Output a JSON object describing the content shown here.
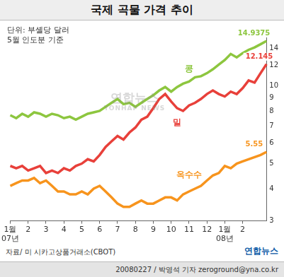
{
  "chart_data": {
    "type": "line",
    "title": "국제 곡물 가격 추이",
    "subtitle": [
      "단위: 부셸당 달러",
      "5월 인도분 기준"
    ],
    "source": "자료/ 미 시카고상품거래소(CBOT)",
    "credit": "20080227 / 박영석 기자 zeroground@yna.co.kr",
    "logo": "연합뉴스",
    "watermark": [
      "연합뉴스",
      "YONHAP NEWS"
    ],
    "log": "y",
    "grid": false,
    "categories": [
      "1월 07년",
      null,
      null,
      "2",
      null,
      null,
      "3",
      null,
      null,
      "4",
      null,
      null,
      "5",
      null,
      null,
      "6",
      null,
      null,
      "7",
      null,
      null,
      "8",
      null,
      null,
      "9",
      null,
      null,
      "10",
      null,
      null,
      "11",
      null,
      null,
      "12",
      null,
      null,
      "1월 08년",
      null,
      null,
      "2",
      null,
      null,
      null,
      null
    ],
    "ylim": [
      3,
      16
    ],
    "yticks": [
      3,
      4,
      5,
      6,
      7,
      8,
      9,
      10,
      12,
      14
    ],
    "series": [
      {
        "name": "콩",
        "color": "#8dc63f",
        "values": [
          7.7,
          7.5,
          7.8,
          7.6,
          7.9,
          7.8,
          7.6,
          7.8,
          7.7,
          7.5,
          7.6,
          7.4,
          7.6,
          7.8,
          7.9,
          8.0,
          8.3,
          8.6,
          8.9,
          8.5,
          8.6,
          8.3,
          8.6,
          8.9,
          9.2,
          9.6,
          9.9,
          9.5,
          9.9,
          10.2,
          10.4,
          10.8,
          10.9,
          11.2,
          11.6,
          12.1,
          12.6,
          13.3,
          12.9,
          13.4,
          13.8,
          14.1,
          14.5,
          14.9375
        ],
        "value_labels": [
          null,
          null,
          null,
          null,
          null,
          null,
          null,
          null,
          null,
          null,
          null,
          null,
          null,
          null,
          null,
          null,
          null,
          null,
          null,
          null,
          null,
          null,
          null,
          null,
          null,
          null,
          null,
          null,
          null,
          null,
          null,
          null,
          null,
          null,
          null,
          null,
          null,
          null,
          null,
          null,
          null,
          null,
          null,
          "14.9375"
        ]
      },
      {
        "name": "밀",
        "color": "#e8403a",
        "values": [
          4.9,
          4.8,
          4.9,
          4.7,
          4.8,
          4.9,
          4.6,
          4.7,
          4.6,
          4.8,
          4.7,
          4.9,
          5.0,
          5.2,
          5.1,
          5.4,
          5.8,
          6.1,
          6.4,
          6.2,
          6.6,
          6.9,
          7.4,
          7.6,
          8.2,
          8.9,
          9.3,
          8.7,
          8.2,
          8.0,
          8.4,
          8.6,
          8.9,
          9.3,
          9.6,
          9.3,
          9.1,
          9.5,
          9.3,
          9.8,
          10.5,
          10.3,
          11.2,
          12.145
        ],
        "value_labels": [
          null,
          null,
          null,
          null,
          null,
          null,
          null,
          null,
          null,
          null,
          null,
          null,
          null,
          null,
          null,
          null,
          null,
          null,
          null,
          null,
          null,
          null,
          null,
          null,
          null,
          null,
          null,
          null,
          null,
          null,
          null,
          null,
          null,
          null,
          null,
          null,
          null,
          null,
          null,
          null,
          null,
          null,
          null,
          "12.145"
        ]
      },
      {
        "name": "옥수수",
        "color": "#f7941d",
        "values": [
          4.1,
          4.2,
          4.3,
          4.3,
          4.4,
          4.2,
          4.3,
          4.1,
          3.9,
          3.9,
          3.8,
          3.8,
          3.9,
          3.8,
          4.0,
          4.1,
          3.9,
          3.7,
          3.5,
          3.4,
          3.4,
          3.5,
          3.6,
          3.5,
          3.5,
          3.6,
          3.7,
          3.7,
          3.6,
          3.8,
          3.9,
          4.0,
          4.1,
          4.3,
          4.5,
          4.6,
          4.9,
          4.8,
          5.0,
          5.1,
          5.2,
          5.3,
          5.4,
          5.55
        ],
        "value_labels": [
          null,
          null,
          null,
          null,
          null,
          null,
          null,
          null,
          null,
          null,
          null,
          null,
          null,
          null,
          null,
          null,
          null,
          null,
          null,
          null,
          null,
          null,
          null,
          null,
          null,
          null,
          null,
          null,
          null,
          null,
          null,
          null,
          null,
          null,
          null,
          null,
          null,
          null,
          null,
          null,
          null,
          null,
          null,
          "5.55"
        ]
      }
    ]
  }
}
